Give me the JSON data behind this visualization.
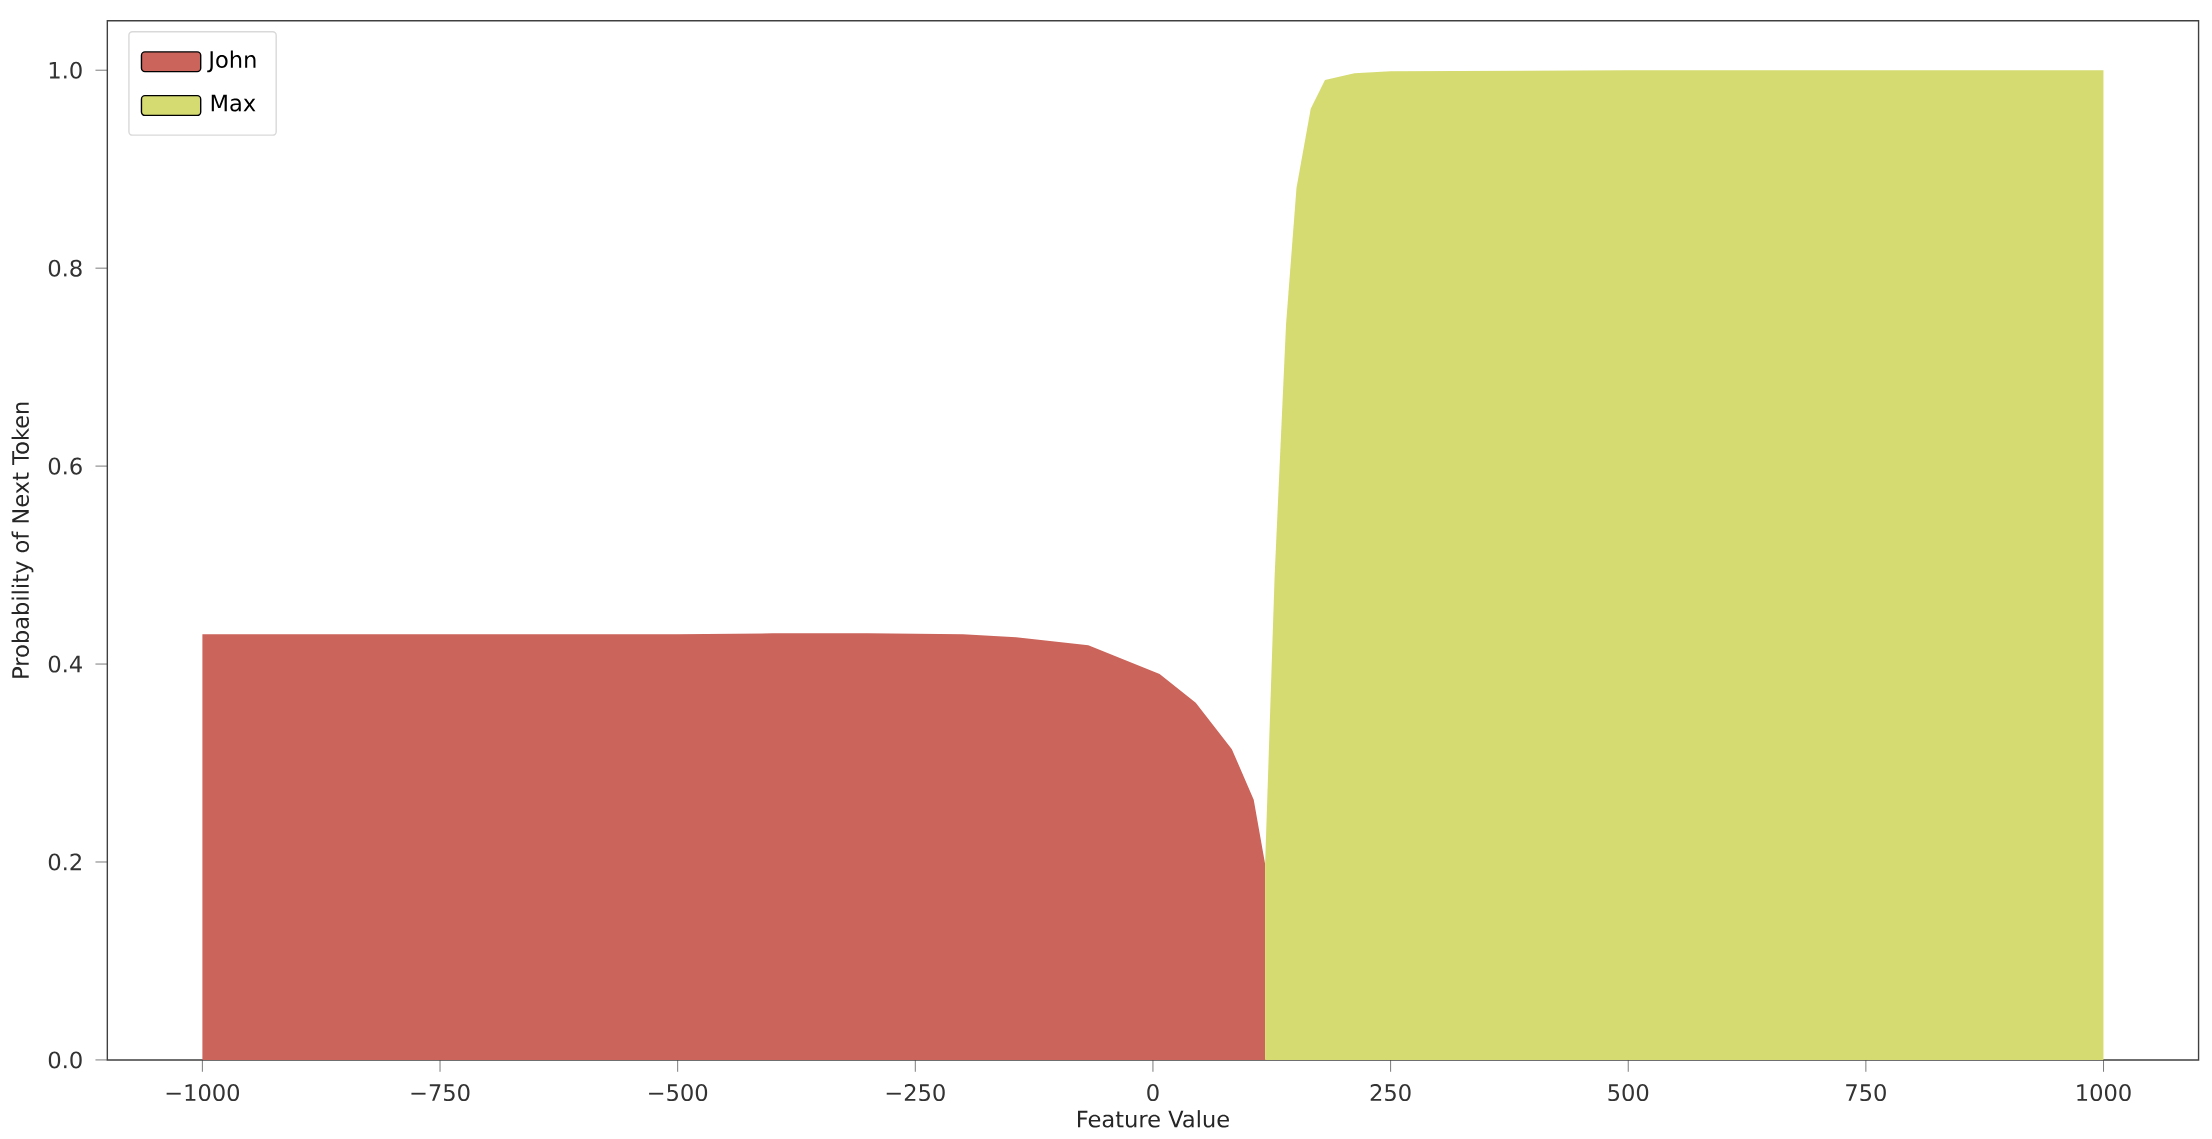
{
  "chart_data": {
    "type": "area",
    "xlabel": "Feature Value",
    "ylabel": "Probability of Next Token",
    "xlim": [
      -1100,
      1100
    ],
    "ylim": [
      0,
      1.05
    ],
    "xticks": [
      {
        "value": -1000,
        "label": "−1000"
      },
      {
        "value": -750,
        "label": "−750"
      },
      {
        "value": -500,
        "label": "−500"
      },
      {
        "value": -250,
        "label": "−250"
      },
      0,
      250,
      500,
      750,
      1000
    ],
    "yticks": [
      {
        "value": 0,
        "label": "0.0"
      },
      {
        "value": 0.2,
        "label": "0.2"
      },
      {
        "value": 0.4,
        "label": "0.4"
      },
      {
        "value": 0.6,
        "label": "0.6"
      },
      {
        "value": 0.8,
        "label": "0.8"
      },
      {
        "value": 1.0,
        "label": "1.0"
      }
    ],
    "legend": "top left",
    "grid": false,
    "series": [
      {
        "name": "John",
        "color": "#cb645a",
        "x": [
          -1000,
          -750,
          -500,
          -400,
          -300,
          -200,
          -144,
          -68,
          7,
          45,
          83,
          106,
          118
        ],
        "values": [
          0.43,
          0.43,
          0.43,
          0.431,
          0.431,
          0.43,
          0.427,
          0.419,
          0.39,
          0.361,
          0.314,
          0.263,
          0.198
        ]
      },
      {
        "name": "Max",
        "color": "#d5db70",
        "x": [
          118,
          128,
          140,
          151,
          166,
          181,
          212,
          250,
          500,
          750,
          1000
        ],
        "values": [
          0.198,
          0.489,
          0.743,
          0.881,
          0.961,
          0.99,
          0.997,
          0.999,
          1.0,
          1.0,
          1.0
        ]
      }
    ]
  }
}
